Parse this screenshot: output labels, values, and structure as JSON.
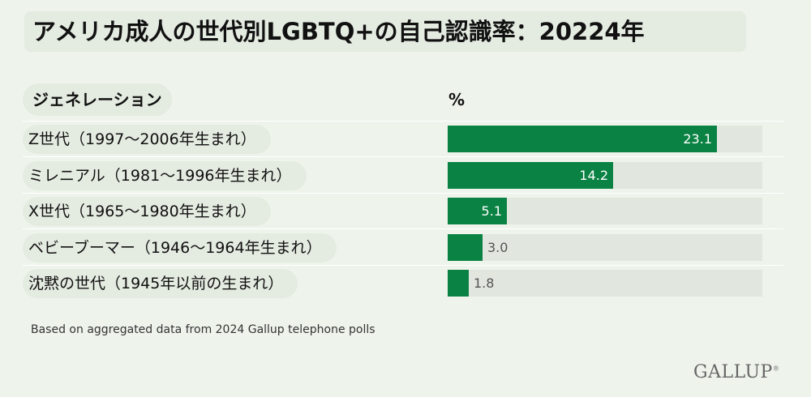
{
  "title": "アメリカ成人の世代別LGBTQ+の自己認識率：20224年",
  "headers": {
    "generation": "ジェネレーション",
    "percent": "%"
  },
  "chart_data": {
    "type": "bar",
    "orientation": "horizontal",
    "categories": [
      "Z世代（1997～2006年生まれ）",
      "ミレニアル（1981～1996年生まれ）",
      "X世代（1965～1980年生まれ）",
      "ベビーブーマー（1946～1964年生まれ）",
      "沈黙の世代（1945年以前の生まれ）"
    ],
    "values": [
      23.1,
      14.2,
      5.1,
      3.0,
      1.8
    ],
    "value_labels": [
      "23.1",
      "14.2",
      "5.1",
      "3.0",
      "1.8"
    ],
    "xlim": [
      0,
      27
    ],
    "bar_color": "#0a8243",
    "track_color": "#e1e6df",
    "grid": false,
    "legend": "none"
  },
  "note": "Based on aggregated data from 2024 Gallup telephone polls",
  "brand": "GALLUP"
}
